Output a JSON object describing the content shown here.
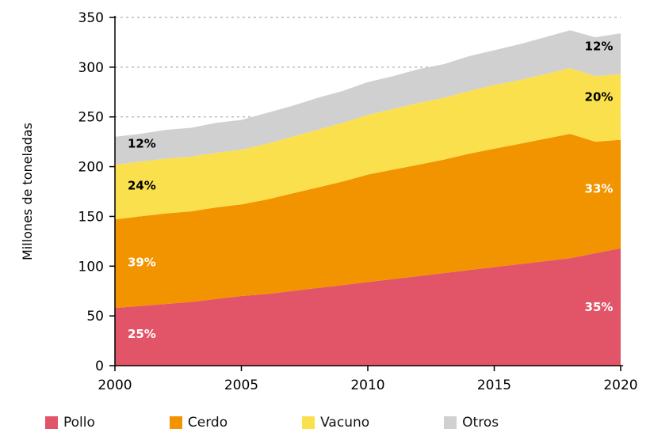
{
  "chart_data": {
    "type": "area",
    "stacked": true,
    "title": "",
    "xlabel": "",
    "ylabel": "Millones de toneladas",
    "ylim": [
      0,
      350
    ],
    "yticks": [
      0,
      50,
      100,
      150,
      200,
      250,
      300,
      350
    ],
    "xticks": [
      2000,
      2005,
      2010,
      2015,
      2020
    ],
    "x": [
      2000,
      2001,
      2002,
      2003,
      2004,
      2005,
      2006,
      2007,
      2008,
      2009,
      2010,
      2011,
      2012,
      2013,
      2014,
      2015,
      2016,
      2017,
      2018,
      2019,
      2020
    ],
    "series": [
      {
        "name": "Pollo",
        "color": "#e25467",
        "values": [
          58,
          60,
          62,
          64,
          67,
          70,
          72,
          75,
          78,
          81,
          84,
          87,
          90,
          93,
          96,
          99,
          102,
          105,
          108,
          113,
          118
        ]
      },
      {
        "name": "Cerdo",
        "color": "#f29400",
        "values": [
          89,
          90,
          91,
          91,
          92,
          92,
          95,
          98,
          101,
          104,
          108,
          110,
          112,
          114,
          117,
          119,
          121,
          123,
          125,
          112,
          109
        ]
      },
      {
        "name": "Vacuno",
        "color": "#fbe04e",
        "values": [
          55,
          55,
          55,
          55,
          55,
          55,
          56,
          57,
          58,
          59,
          60,
          61,
          62,
          62,
          63,
          64,
          64,
          65,
          66,
          66,
          66
        ]
      },
      {
        "name": "Otros",
        "color": "#d0d0d0",
        "values": [
          28,
          28,
          29,
          29,
          30,
          30,
          31,
          31,
          32,
          32,
          33,
          33,
          34,
          34,
          35,
          35,
          36,
          37,
          38,
          39,
          41
        ]
      }
    ],
    "annotations": [
      {
        "text": "25%",
        "x": 2000.5,
        "y": 28,
        "color": "#ffffff",
        "anchor": "start"
      },
      {
        "text": "39%",
        "x": 2000.5,
        "y": 100,
        "color": "#ffffff",
        "anchor": "start"
      },
      {
        "text": "24%",
        "x": 2000.5,
        "y": 177,
        "color": "#000000",
        "anchor": "start"
      },
      {
        "text": "12%",
        "x": 2000.5,
        "y": 219,
        "color": "#000000",
        "anchor": "start"
      },
      {
        "text": "35%",
        "x": 2019.7,
        "y": 55,
        "color": "#ffffff",
        "anchor": "end"
      },
      {
        "text": "33%",
        "x": 2019.7,
        "y": 174,
        "color": "#ffffff",
        "anchor": "end"
      },
      {
        "text": "20%",
        "x": 2019.7,
        "y": 266,
        "color": "#000000",
        "anchor": "end"
      },
      {
        "text": "12%",
        "x": 2019.7,
        "y": 317,
        "color": "#000000",
        "anchor": "end"
      }
    ],
    "legend": {
      "position": "bottom",
      "entries": [
        "Pollo",
        "Cerdo",
        "Vacuno",
        "Otros"
      ]
    },
    "grid": {
      "horizontal": true,
      "style": "dashed",
      "color": "#9a9a9a"
    }
  }
}
